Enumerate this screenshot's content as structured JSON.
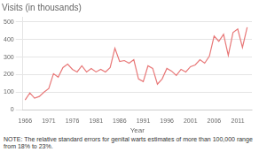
{
  "chart_data": {
    "type": "line",
    "title": "Visits (in thousands)",
    "xlabel": "Year",
    "note": "NOTE: The relative standard errors for genital warts estimates of more than 100,000 range from 18% to 23%.",
    "x": [
      1966,
      1967,
      1968,
      1969,
      1970,
      1971,
      1972,
      1973,
      1974,
      1975,
      1976,
      1977,
      1978,
      1979,
      1980,
      1981,
      1982,
      1983,
      1984,
      1985,
      1986,
      1987,
      1988,
      1989,
      1990,
      1991,
      1992,
      1993,
      1994,
      1995,
      1996,
      1997,
      1998,
      1999,
      2000,
      2001,
      2002,
      2003,
      2004,
      2005,
      2006,
      2007,
      2008,
      2009,
      2010,
      2011,
      2012,
      2013
    ],
    "values": [
      55,
      95,
      65,
      75,
      100,
      120,
      205,
      185,
      240,
      260,
      230,
      215,
      250,
      215,
      235,
      215,
      230,
      215,
      240,
      350,
      275,
      280,
      265,
      285,
      175,
      160,
      250,
      235,
      145,
      175,
      235,
      220,
      195,
      230,
      215,
      245,
      255,
      285,
      265,
      305,
      420,
      390,
      430,
      310,
      440,
      460,
      355,
      470
    ],
    "color": "#e87878",
    "xlim": [
      1965.5,
      2014
    ],
    "ylim": [
      0,
      530
    ],
    "xticks": [
      1966,
      1971,
      1976,
      1981,
      1986,
      1991,
      1996,
      2001,
      2006,
      2011
    ],
    "yticks": [
      0,
      100,
      200,
      300,
      400,
      500
    ],
    "grid": "y"
  }
}
